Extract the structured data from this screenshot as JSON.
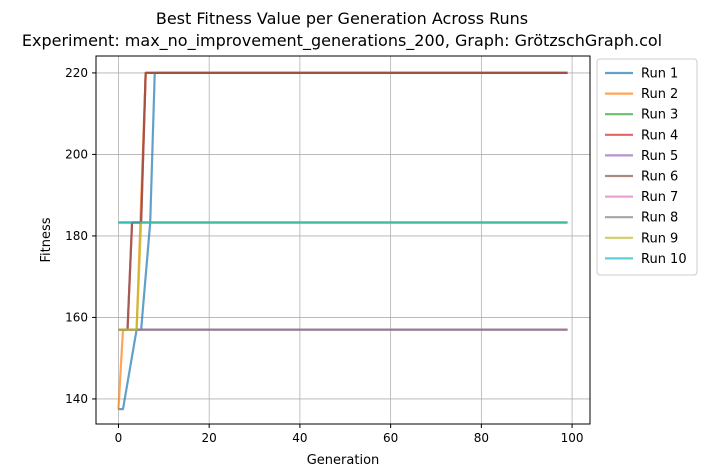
{
  "chart_data": {
    "type": "line",
    "title": "Best Fitness Value per Generation Across Runs",
    "subtitle": "Experiment: max_no_improvement_generations_200, Graph: GrötzschGraph.col",
    "xlabel": "Generation",
    "ylabel": "Fitness",
    "xlim": [
      -4.95,
      103.95
    ],
    "ylim": [
      133.85,
      224.15
    ],
    "xticks": [
      0,
      20,
      40,
      60,
      80,
      100
    ],
    "yticks": [
      140,
      160,
      180,
      200,
      220
    ],
    "grid": true,
    "legend_position": "outside-right-top",
    "series": [
      {
        "name": "Run 1",
        "color": "#1f77b4",
        "points": [
          [
            0,
            137.5
          ],
          [
            1,
            137.5
          ],
          [
            4,
            157
          ],
          [
            5,
            157
          ],
          [
            7,
            183.3
          ],
          [
            8,
            220
          ],
          [
            99,
            220
          ]
        ]
      },
      {
        "name": "Run 2",
        "color": "#ff7f0e",
        "points": [
          [
            0,
            137.5
          ],
          [
            1,
            157
          ],
          [
            4,
            157
          ],
          [
            6,
            220
          ],
          [
            99,
            220
          ]
        ]
      },
      {
        "name": "Run 3",
        "color": "#2ca02c",
        "points": [
          [
            0,
            183.3
          ],
          [
            99,
            183.3
          ]
        ]
      },
      {
        "name": "Run 4",
        "color": "#d62728",
        "points": [
          [
            0,
            157
          ],
          [
            2,
            157
          ],
          [
            3,
            183.3
          ],
          [
            5,
            183.3
          ],
          [
            6,
            220
          ],
          [
            99,
            220
          ]
        ]
      },
      {
        "name": "Run 5",
        "color": "#9467bd",
        "points": [
          [
            0,
            157
          ],
          [
            99,
            157
          ]
        ]
      },
      {
        "name": "Run 6",
        "color": "#8c564b",
        "points": [
          [
            0,
            157
          ],
          [
            2,
            157
          ],
          [
            3,
            183.3
          ],
          [
            5,
            183.3
          ],
          [
            6,
            220
          ],
          [
            99,
            220
          ]
        ]
      },
      {
        "name": "Run 7",
        "color": "#e377c2",
        "points": [
          [
            0,
            157
          ],
          [
            99,
            157
          ]
        ]
      },
      {
        "name": "Run 8",
        "color": "#7f7f7f",
        "points": [
          [
            0,
            157
          ],
          [
            99,
            157
          ]
        ]
      },
      {
        "name": "Run 9",
        "color": "#bcbd22",
        "points": [
          [
            0,
            157
          ],
          [
            4,
            157
          ],
          [
            5,
            183.3
          ],
          [
            99,
            183.3
          ]
        ]
      },
      {
        "name": "Run 10",
        "color": "#17becf",
        "points": [
          [
            0,
            183.3
          ],
          [
            99,
            183.3
          ]
        ]
      }
    ]
  }
}
